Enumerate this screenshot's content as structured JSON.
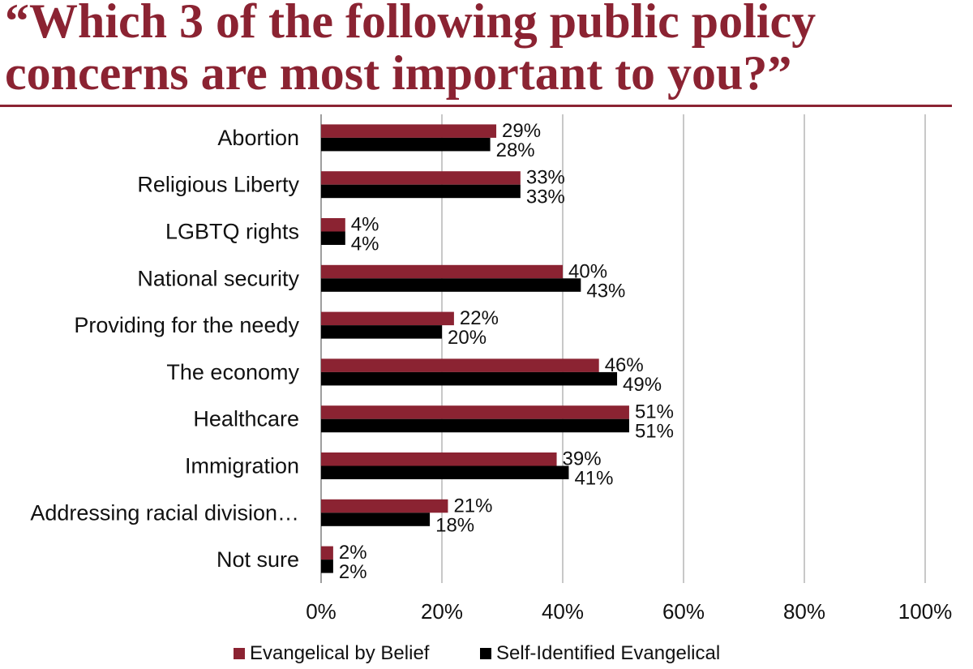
{
  "chart_data": {
    "type": "bar",
    "orientation": "horizontal",
    "title": "“Which 3 of the following public policy concerns are most important to you?”",
    "categories": [
      "Abortion",
      "Religious Liberty",
      "LGBTQ rights",
      "National security",
      "Providing for the needy",
      "The economy",
      "Healthcare",
      "Immigration",
      "Addressing racial division…",
      "Not sure"
    ],
    "series": [
      {
        "name": "Evangelical by Belief",
        "color": "#8b2332",
        "values": [
          29,
          33,
          4,
          40,
          22,
          46,
          51,
          39,
          21,
          2
        ],
        "labels": [
          "29%",
          "33%",
          "4%",
          "40%",
          "22%",
          "46%",
          "51%",
          "39%",
          "21%",
          "2%"
        ]
      },
      {
        "name": "Self-Identified Evangelical",
        "color": "#000000",
        "values": [
          28,
          33,
          4,
          43,
          20,
          49,
          51,
          41,
          18,
          2
        ],
        "labels": [
          "28%",
          "33%",
          "4%",
          "43%",
          "20%",
          "49%",
          "51%",
          "41%",
          "18%",
          "2%"
        ]
      }
    ],
    "xlim": [
      0,
      100
    ],
    "x_ticks": [
      "0%",
      "20%",
      "40%",
      "60%",
      "80%",
      "100%"
    ],
    "grid": true,
    "legend": "bottom"
  }
}
